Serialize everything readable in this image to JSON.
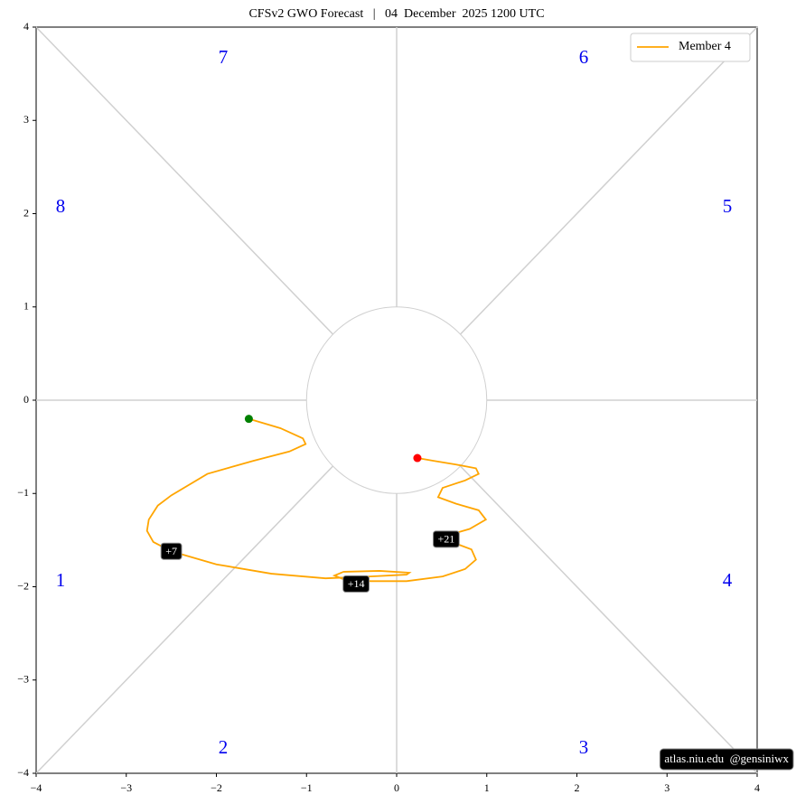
{
  "chart_data": {
    "type": "line",
    "title": "CFSv2 GWO Forecast   |   04  December  2025 1200 UTC",
    "xlim": [
      -4,
      4
    ],
    "ylim": [
      -4,
      4
    ],
    "xticks": [
      {
        "value": -4,
        "label": "−4"
      },
      {
        "value": -3,
        "label": "−3"
      },
      {
        "value": -2,
        "label": "−2"
      },
      {
        "value": -1,
        "label": "−1"
      },
      0,
      1,
      2,
      3,
      4
    ],
    "yticks": [
      {
        "value": -4,
        "label": "−4"
      },
      {
        "value": -3,
        "label": "−3"
      },
      {
        "value": -2,
        "label": "−2"
      },
      {
        "value": -1,
        "label": "−1"
      },
      0,
      1,
      2,
      3,
      4
    ],
    "legend": "upper right",
    "series": [
      {
        "name": "Member 4",
        "color": "#ffa500",
        "x": [
          -1.64,
          -1.29,
          -1.04,
          -1.01,
          -1.19,
          -1.59,
          -2.1,
          -2.5,
          -2.65,
          -2.75,
          -2.77,
          -2.7,
          -2.5,
          -2.0,
          -1.39,
          -0.79,
          -0.29,
          0.11,
          0.14,
          -0.19,
          -0.59,
          -0.69,
          -0.59,
          -0.29,
          0.11,
          0.51,
          0.76,
          0.88,
          0.83,
          0.61,
          0.46,
          0.81,
          0.99,
          0.91,
          0.66,
          0.46,
          0.51,
          0.76,
          0.91,
          0.88,
          0.66,
          0.41,
          0.23
        ],
        "values": [
          -0.2,
          -0.3,
          -0.41,
          -0.47,
          -0.55,
          -0.65,
          -0.79,
          -1.02,
          -1.13,
          -1.28,
          -1.4,
          -1.52,
          -1.62,
          -1.76,
          -1.86,
          -1.91,
          -1.89,
          -1.87,
          -1.85,
          -1.83,
          -1.84,
          -1.88,
          -1.92,
          -1.94,
          -1.94,
          -1.89,
          -1.81,
          -1.71,
          -1.6,
          -1.52,
          -1.48,
          -1.38,
          -1.28,
          -1.18,
          -1.11,
          -1.04,
          -0.94,
          -0.86,
          -0.79,
          -0.73,
          -0.69,
          -0.65,
          -0.62
        ]
      }
    ],
    "start_color": "#008000",
    "end_color": "#ff0000",
    "annotations": [
      {
        "text": "+7",
        "x": -2.5,
        "y": -1.62
      },
      {
        "text": "+14",
        "x": -0.45,
        "y": -1.97
      },
      {
        "text": "+21",
        "x": 0.55,
        "y": -1.49
      }
    ],
    "phase_labels": [
      "1",
      "2",
      "3",
      "4",
      "5",
      "6",
      "7",
      "8"
    ],
    "watermark": "atlas.niu.edu  @gensiniwx"
  }
}
